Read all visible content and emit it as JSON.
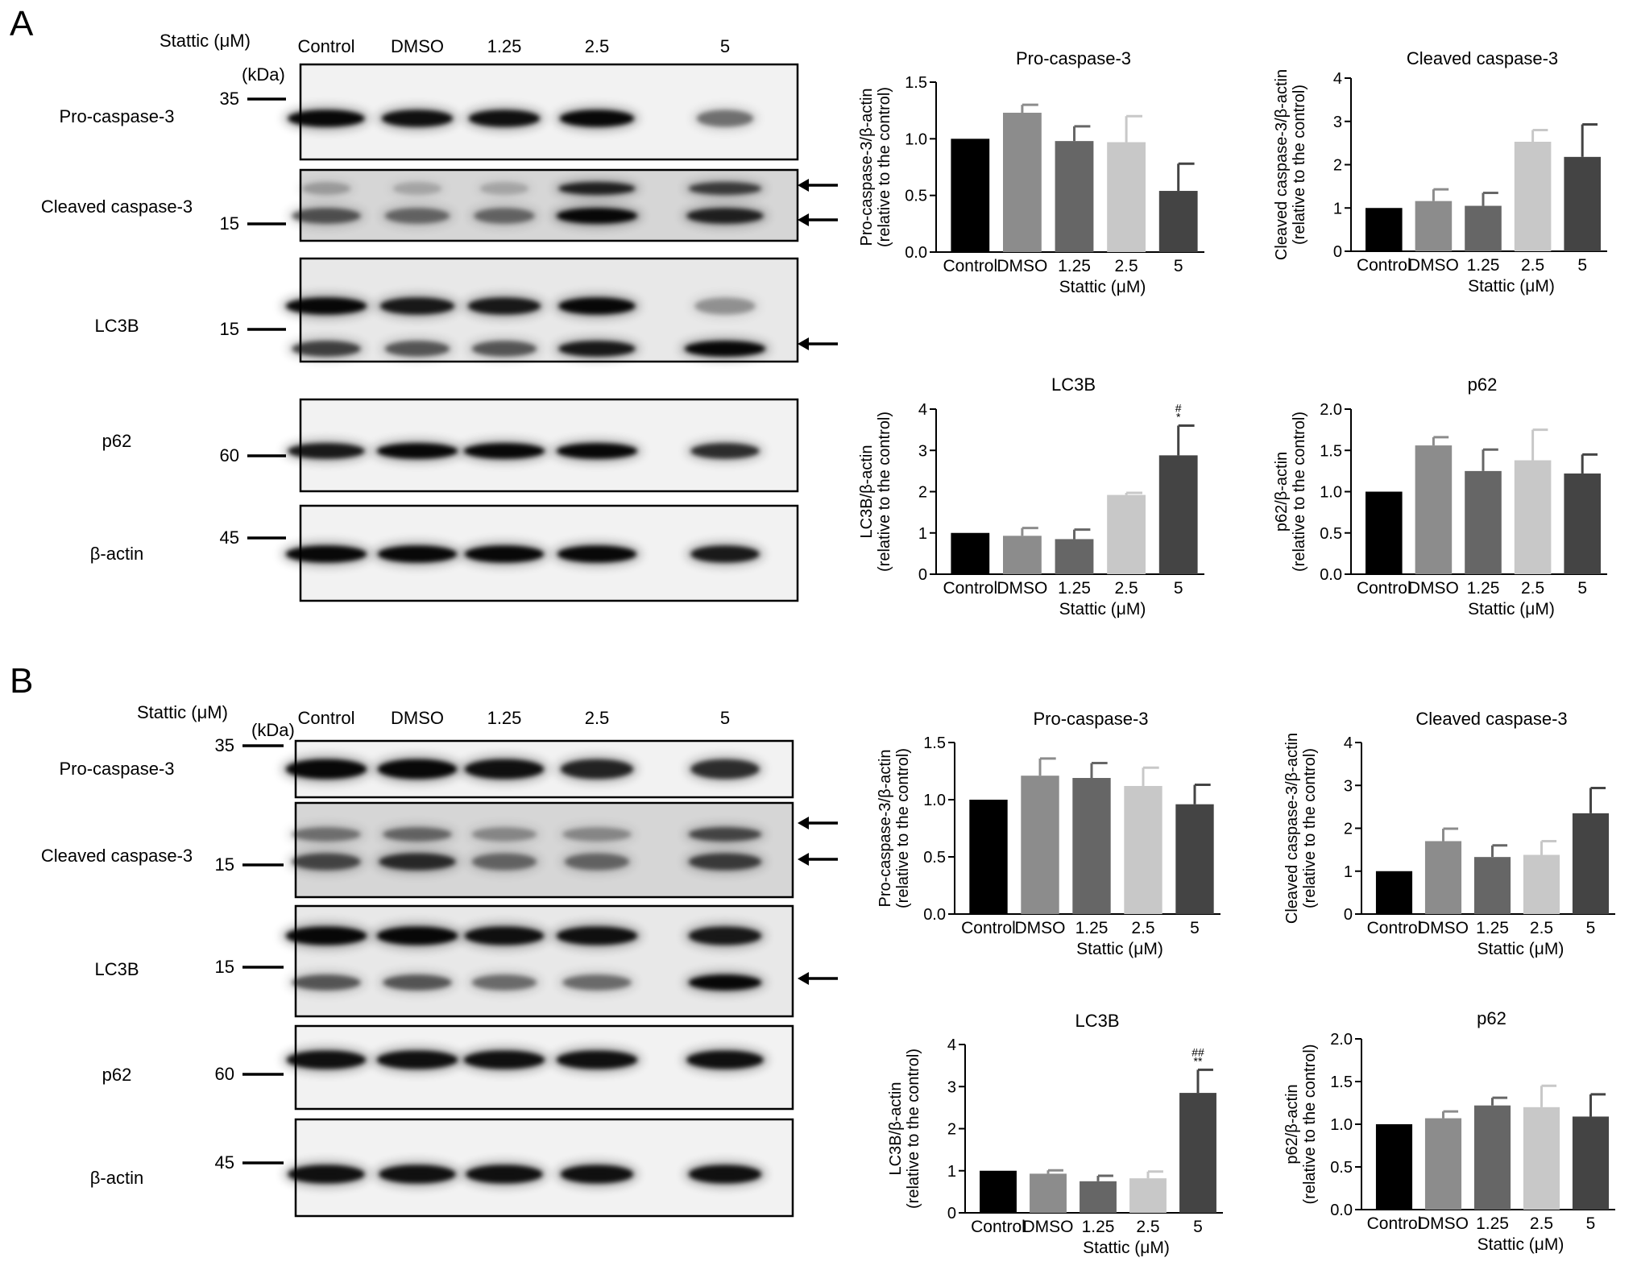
{
  "panels": [
    {
      "letter": "A",
      "blot": {
        "stattic_label": "Stattic (μM)",
        "kda_label": "(kDa)",
        "lanes": [
          "Control",
          "DMSO",
          "1.25",
          "2.5",
          "5"
        ],
        "rows": [
          {
            "label": "Pro-caspase-3",
            "marker": "35"
          },
          {
            "label": "Cleaved caspase-3",
            "marker": "15"
          },
          {
            "label": "LC3B",
            "marker": "15"
          },
          {
            "label": "p62",
            "marker": "60"
          },
          {
            "label": "β-actin",
            "marker": "45"
          }
        ]
      }
    },
    {
      "letter": "B",
      "blot": {
        "stattic_label": "Stattic (μM)",
        "kda_label": "(kDa)",
        "lanes": [
          "Control",
          "DMSO",
          "1.25",
          "2.5",
          "5"
        ],
        "rows": [
          {
            "label": "Pro-caspase-3",
            "marker": "35"
          },
          {
            "label": "Cleaved caspase-3",
            "marker": "15"
          },
          {
            "label": "LC3B",
            "marker": "15"
          },
          {
            "label": "p62",
            "marker": "60"
          },
          {
            "label": "β-actin",
            "marker": "45"
          }
        ]
      }
    }
  ],
  "bar_colors": [
    "#000000",
    "#8c8c8c",
    "#666666",
    "#c8c8c8",
    "#444444"
  ],
  "chart_data": [
    {
      "type": "bar",
      "panel": "A",
      "title": "Pro-caspase-3",
      "ylabel": [
        "Pro-caspase-3/β-actin",
        "(relative to the control)"
      ],
      "xlabel": "Stattic (μM)",
      "categories": [
        "Control",
        "DMSO",
        "1.25",
        "2.5",
        "5"
      ],
      "values": [
        1.0,
        1.23,
        0.98,
        0.97,
        0.54
      ],
      "errors": [
        0,
        0.07,
        0.13,
        0.23,
        0.24
      ],
      "ylim": [
        0,
        1.5
      ],
      "yticks": [
        "0.0",
        "0.5",
        "1.0",
        "1.5"
      ],
      "sig": [
        "",
        "",
        "",
        "",
        ""
      ]
    },
    {
      "type": "bar",
      "panel": "A",
      "title": "Cleaved caspase-3",
      "ylabel": [
        "Cleaved caspase-3/β-actin",
        "(relative to the control)"
      ],
      "xlabel": "Stattic (μM)",
      "categories": [
        "Control",
        "DMSO",
        "1.25",
        "2.5",
        "5"
      ],
      "values": [
        1.0,
        1.16,
        1.05,
        2.53,
        2.18
      ],
      "errors": [
        0,
        0.27,
        0.3,
        0.27,
        0.75
      ],
      "ylim": [
        0,
        4
      ],
      "yticks": [
        "0",
        "1",
        "2",
        "3",
        "4"
      ],
      "sig": [
        "",
        "",
        "",
        "",
        ""
      ]
    },
    {
      "type": "bar",
      "panel": "A",
      "title": "LC3B",
      "ylabel": [
        "LC3B/β-actin",
        "(relative to the control)"
      ],
      "xlabel": "Stattic (μM)",
      "categories": [
        "Control",
        "DMSO",
        "1.25",
        "2.5",
        "5"
      ],
      "values": [
        1.0,
        0.93,
        0.85,
        1.92,
        2.88
      ],
      "errors": [
        0,
        0.19,
        0.23,
        0.05,
        0.72
      ],
      "ylim": [
        0,
        4
      ],
      "yticks": [
        "0",
        "1",
        "2",
        "3",
        "4"
      ],
      "sig": [
        "",
        "",
        "",
        "",
        "#\n*"
      ]
    },
    {
      "type": "bar",
      "panel": "A",
      "title": "p62",
      "ylabel": [
        "p62/β-actin",
        "(relative to the control)"
      ],
      "xlabel": "Stattic (μM)",
      "categories": [
        "Control",
        "DMSO",
        "1.25",
        "2.5",
        "5"
      ],
      "values": [
        1.0,
        1.56,
        1.25,
        1.38,
        1.22
      ],
      "errors": [
        0,
        0.1,
        0.26,
        0.37,
        0.23
      ],
      "ylim": [
        0,
        2.0
      ],
      "yticks": [
        "0.0",
        "0.5",
        "1.0",
        "1.5",
        "2.0"
      ],
      "sig": [
        "",
        "",
        "",
        "",
        ""
      ]
    },
    {
      "type": "bar",
      "panel": "B",
      "title": "Pro-caspase-3",
      "ylabel": [
        "Pro-caspase-3/β-actin",
        "(relative to the control)"
      ],
      "xlabel": "Stattic (μM)",
      "categories": [
        "Control",
        "DMSO",
        "1.25",
        "2.5",
        "5"
      ],
      "values": [
        1.0,
        1.21,
        1.19,
        1.12,
        0.96
      ],
      "errors": [
        0,
        0.15,
        0.13,
        0.16,
        0.17
      ],
      "ylim": [
        0,
        1.5
      ],
      "yticks": [
        "0.0",
        "0.5",
        "1.0",
        "1.5"
      ],
      "sig": [
        "",
        "",
        "",
        "",
        ""
      ]
    },
    {
      "type": "bar",
      "panel": "B",
      "title": "Cleaved caspase-3",
      "ylabel": [
        "Cleaved caspase-3/β-actin",
        "(relative to the control)"
      ],
      "xlabel": "Stattic (μM)",
      "categories": [
        "Control",
        "DMSO",
        "1.25",
        "2.5",
        "5"
      ],
      "values": [
        1.0,
        1.7,
        1.33,
        1.38,
        2.35
      ],
      "errors": [
        0,
        0.29,
        0.27,
        0.32,
        0.59
      ],
      "ylim": [
        0,
        4
      ],
      "yticks": [
        "0",
        "1",
        "2",
        "3",
        "4"
      ],
      "sig": [
        "",
        "",
        "",
        "",
        ""
      ]
    },
    {
      "type": "bar",
      "panel": "B",
      "title": "LC3B",
      "ylabel": [
        "LC3B/β-actin",
        "(relative to the control)"
      ],
      "xlabel": "Stattic (μM)",
      "categories": [
        "Control",
        "DMSO",
        "1.25",
        "2.5",
        "5"
      ],
      "values": [
        1.0,
        0.93,
        0.75,
        0.82,
        2.85
      ],
      "errors": [
        0,
        0.08,
        0.13,
        0.16,
        0.55
      ],
      "ylim": [
        0,
        4
      ],
      "yticks": [
        "0",
        "1",
        "2",
        "3",
        "4"
      ],
      "sig": [
        "",
        "",
        "",
        "",
        "##\n**"
      ]
    },
    {
      "type": "bar",
      "panel": "B",
      "title": "p62",
      "ylabel": [
        "p62/β-actin",
        "(relative to the control)"
      ],
      "xlabel": "Stattic (μM)",
      "categories": [
        "Control",
        "DMSO",
        "1.25",
        "2.5",
        "5"
      ],
      "values": [
        1.0,
        1.07,
        1.22,
        1.2,
        1.09
      ],
      "errors": [
        0,
        0.08,
        0.09,
        0.25,
        0.26
      ],
      "ylim": [
        0,
        2.0
      ],
      "yticks": [
        "0.0",
        "0.5",
        "1.0",
        "1.5",
        "2.0"
      ],
      "sig": [
        "",
        "",
        "",
        "",
        ""
      ]
    }
  ]
}
